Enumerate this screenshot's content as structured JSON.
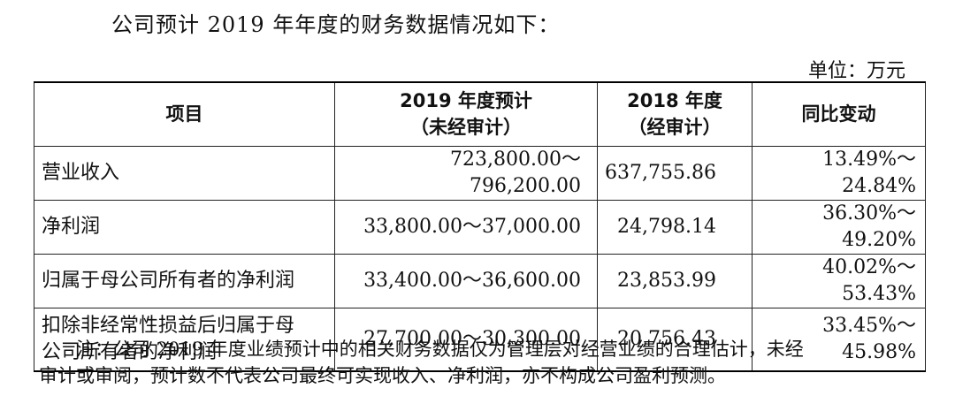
{
  "intro": "公司预计 2019 年年度的财务数据情况如下：",
  "unit": "单位：万元",
  "table": {
    "headers": [
      {
        "line1": "项目",
        "line2": ""
      },
      {
        "line1": "2019 年度预计",
        "line2": "（未经审计）"
      },
      {
        "line1": "2018 年度",
        "line2": "（经审计）"
      },
      {
        "line1": "同比变动",
        "line2": ""
      }
    ],
    "rows": [
      {
        "item": "营业收入",
        "forecast_2019": "723,800.00～796,200.00",
        "actual_2018": "637,755.86",
        "yoy": "13.49%～24.84%"
      },
      {
        "item": "净利润",
        "forecast_2019": "33,800.00～37,000.00",
        "actual_2018": "24,798.14",
        "yoy": "36.30%～49.20%"
      },
      {
        "item": "归属于母公司所有者的净利润",
        "forecast_2019": "33,400.00～36,600.00",
        "actual_2018": "23,853.99",
        "yoy": "40.02%～53.43%"
      },
      {
        "item_line1": "扣除非经常性损益后归属于母",
        "item_line2": "公司所有者的净利润",
        "forecast_2019": "27,700.00～30,300.00",
        "actual_2018": "20,756.43",
        "yoy": "33.45%～45.98%"
      }
    ]
  },
  "note": {
    "line1": "注：公司 2019 年度业绩预计中的相关财务数据仅为管理层对经营业绩的合理估计，未经",
    "line2": "审计或审阅，预计数不代表公司最终可实现收入、净利润，亦不构成公司盈利预测。"
  }
}
